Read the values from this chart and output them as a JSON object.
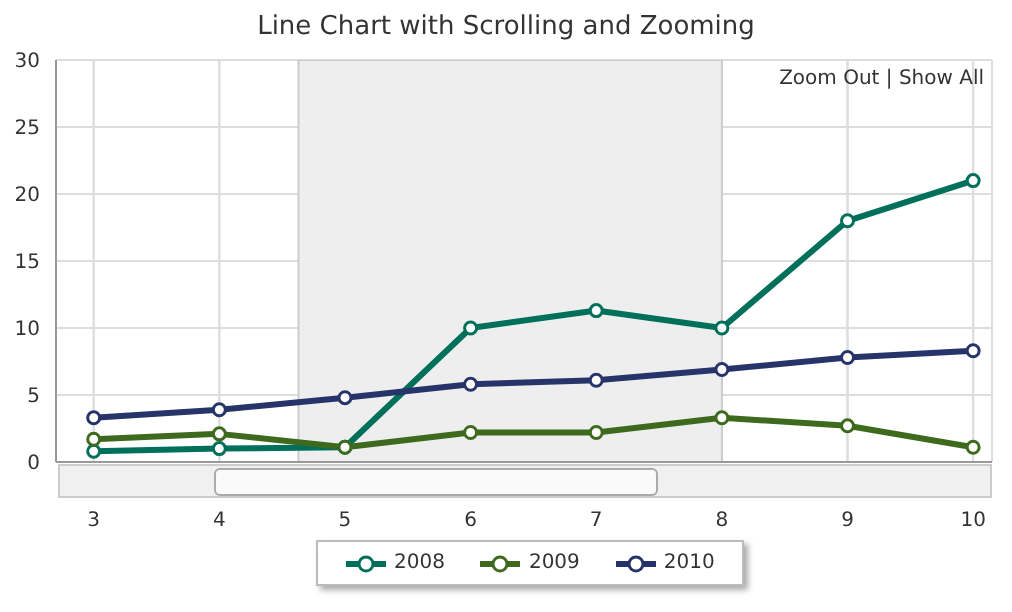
{
  "chart_data": {
    "type": "line",
    "title": "Line Chart with Scrolling and Zooming",
    "x": [
      3,
      4,
      5,
      6,
      7,
      8,
      9,
      10
    ],
    "series": [
      {
        "name": "2008",
        "color": "#00705a",
        "values": [
          0.8,
          1.0,
          1.1,
          10,
          11.3,
          10,
          18,
          21
        ]
      },
      {
        "name": "2009",
        "color": "#3e6a1e",
        "values": [
          1.7,
          2.1,
          1.1,
          2.2,
          2.2,
          3.3,
          2.7,
          1.1
        ]
      },
      {
        "name": "2010",
        "color": "#27346a",
        "values": [
          3.3,
          3.9,
          4.8,
          5.8,
          6.1,
          6.9,
          7.8,
          8.3
        ]
      }
    ],
    "xlim": [
      2.7,
      10.15
    ],
    "xticks": [
      3,
      4,
      5,
      6,
      7,
      8,
      9,
      10
    ],
    "ylim": [
      0,
      30
    ],
    "yticks": [
      0,
      5,
      10,
      15,
      20,
      25,
      30
    ],
    "bands": [
      {
        "axis": "x",
        "from": 4.63,
        "to": 8,
        "color": "#eeeeee"
      }
    ],
    "annotations": [
      "Zoom Out | Show All"
    ],
    "grid": true,
    "legend": "bottom",
    "marker": "circle",
    "line_style": "solid"
  }
}
